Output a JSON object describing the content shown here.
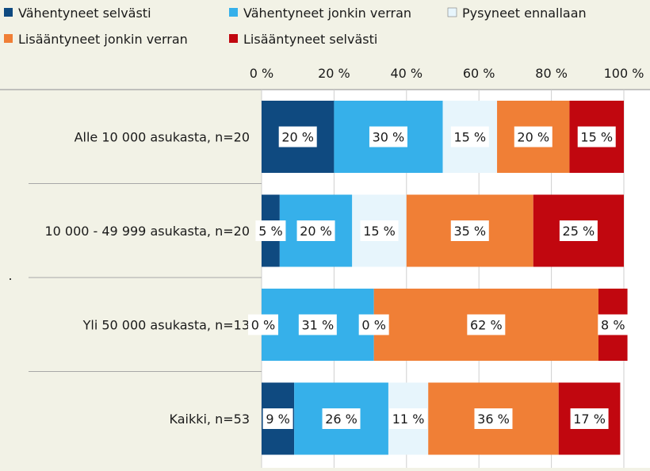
{
  "chart_data": {
    "type": "bar",
    "orientation": "horizontal",
    "stacked": "percent",
    "categories": [
      "Alle 10 000 asukasta, n=20",
      "10 000 - 49 999 asukasta, n=20",
      "Yli 50 000 asukasta, n=13",
      "Kaikki, n=53"
    ],
    "series": [
      {
        "name": "Vähentyneet selvästi",
        "color": "#0f4a80",
        "values": [
          20,
          5,
          0,
          9
        ],
        "labels": [
          "20 %",
          "5 %",
          "0 %",
          "9 %"
        ]
      },
      {
        "name": "Vähentyneet jonkin verran",
        "color": "#36b0ea",
        "values": [
          30,
          20,
          31,
          26
        ],
        "labels": [
          "30 %",
          "20 %",
          "31 %",
          "26 %"
        ]
      },
      {
        "name": "Pysyneet ennallaan",
        "color": "#e7f5fc",
        "values": [
          15,
          15,
          0,
          11
        ],
        "labels": [
          "15 %",
          "15 %",
          "0 %",
          "11 %"
        ]
      },
      {
        "name": "Lisääntyneet jonkin verran",
        "color": "#f07f36",
        "values": [
          20,
          35,
          62,
          36
        ],
        "labels": [
          "20 %",
          "35 %",
          "62 %",
          "36 %"
        ]
      },
      {
        "name": "Lisääntyneet selvästi",
        "color": "#c1070f",
        "values": [
          15,
          25,
          8,
          17
        ],
        "labels": [
          "15 %",
          "25 %",
          "8 %",
          "17 %"
        ]
      }
    ],
    "xlim": [
      0,
      100
    ],
    "xticks": [
      "0 %",
      "20 %",
      "40 %",
      "60 %",
      "80 %",
      "100 %"
    ],
    "legend_position": "top",
    "grid": true,
    "stray_mark": "."
  }
}
